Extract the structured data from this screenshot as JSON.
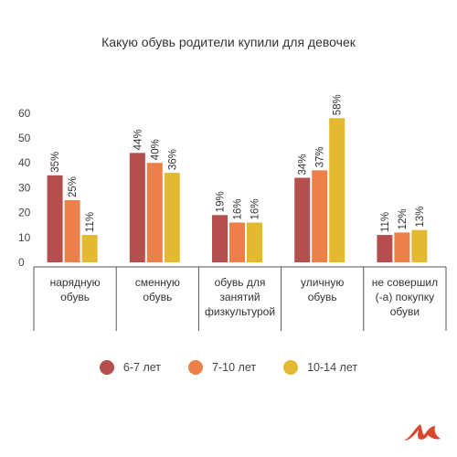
{
  "chart_data": {
    "type": "bar",
    "title": "Какую обувь родители купили для девочек",
    "categories": [
      [
        "нарядную",
        "обувь"
      ],
      [
        "сменную",
        "обувь"
      ],
      [
        "обувь для",
        "занятий",
        "физкультурой"
      ],
      [
        "уличную",
        "обувь"
      ],
      [
        "не совершил",
        "(-а) покупку",
        "обуви"
      ]
    ],
    "series": [
      {
        "name": "6-7 лет",
        "color": "#b44f4d",
        "values": [
          35,
          44,
          19,
          34,
          11
        ]
      },
      {
        "name": "7-10 лет",
        "color": "#eb8148",
        "values": [
          25,
          40,
          16,
          37,
          12
        ]
      },
      {
        "name": "10-14 лет",
        "color": "#e3b932",
        "values": [
          11,
          36,
          16,
          58,
          13
        ]
      }
    ],
    "value_suffix": "%",
    "ylim": [
      0,
      60
    ],
    "yticks": [
      0,
      10,
      20,
      30,
      40,
      50,
      60
    ],
    "grid": false,
    "legend_position": "bottom"
  },
  "logo": {
    "name": "brand-logo-icon",
    "color": "#d9472b"
  }
}
